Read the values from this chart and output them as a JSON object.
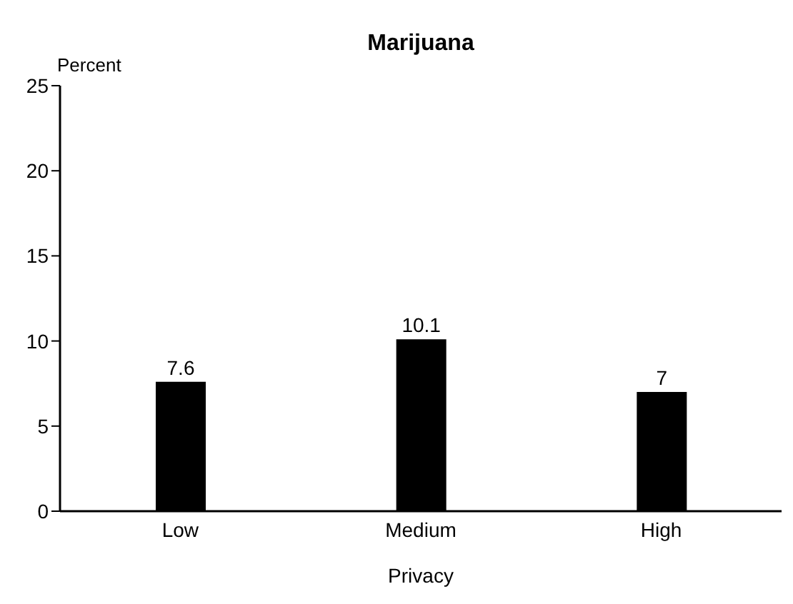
{
  "chart_data": {
    "type": "bar",
    "title": "Marijuana",
    "ylabel": "Percent",
    "xlabel": "Privacy",
    "categories": [
      "Low",
      "Medium",
      "High"
    ],
    "values": [
      7.6,
      10.1,
      7
    ],
    "color": "#000000",
    "ylim": [
      0,
      25
    ],
    "yticks": [
      0,
      5,
      10,
      15,
      20,
      25
    ],
    "data_labels": true,
    "grid": false,
    "legend": false
  }
}
